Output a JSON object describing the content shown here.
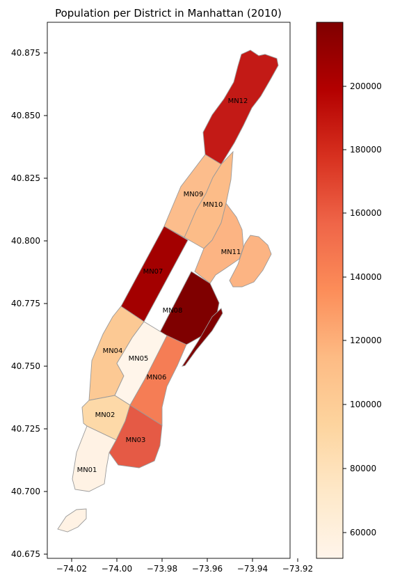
{
  "map": {
    "title": "Population per District in Manhattan (2010)",
    "x_ticks": [
      "−74.02",
      "−74.00",
      "−73.98",
      "−73.96",
      "−73.94",
      "−73.92"
    ],
    "y_ticks": [
      "40.875",
      "40.850",
      "40.825",
      "40.800",
      "40.775",
      "40.750",
      "40.725",
      "40.700",
      "40.675"
    ],
    "districts": [
      {
        "id": "MN01",
        "label": "MN01",
        "population": 60000,
        "color": "#fff2e4"
      },
      {
        "id": "MN02",
        "label": "MN02",
        "population": 90000,
        "color": "#fdd9a8"
      },
      {
        "id": "MN03",
        "label": "MN03",
        "population": 163000,
        "color": "#e55a45"
      },
      {
        "id": "MN04",
        "label": "MN04",
        "population": 103000,
        "color": "#fcc994"
      },
      {
        "id": "MN05",
        "label": "MN05",
        "population": 52000,
        "color": "#fff5ea"
      },
      {
        "id": "MN06",
        "label": "MN06",
        "population": 142000,
        "color": "#f57d55"
      },
      {
        "id": "MN07",
        "label": "MN07",
        "population": 210000,
        "color": "#a30000"
      },
      {
        "id": "MN08",
        "label": "MN08",
        "population": 219000,
        "color": "#7f0000"
      },
      {
        "id": "MN09",
        "label": "MN09",
        "population": 111000,
        "color": "#fcbd8c"
      },
      {
        "id": "MN10",
        "label": "MN10",
        "population": 116000,
        "color": "#fcbc88"
      },
      {
        "id": "MN11",
        "label": "MN11",
        "population": 120000,
        "color": "#fcb483"
      },
      {
        "id": "MN12",
        "label": "MN12",
        "population": 190000,
        "color": "#c31a16"
      }
    ]
  },
  "colorbar": {
    "ticks": [
      "60000",
      "80000",
      "100000",
      "120000",
      "140000",
      "160000",
      "180000",
      "200000"
    ],
    "min": 52000,
    "max": 219000,
    "colors": [
      "#fff5eb",
      "#fee6ce",
      "#fdd0a2",
      "#fdae6b",
      "#fd8d3c",
      "#f16913",
      "#e34a33",
      "#b30000",
      "#7f0000"
    ]
  }
}
